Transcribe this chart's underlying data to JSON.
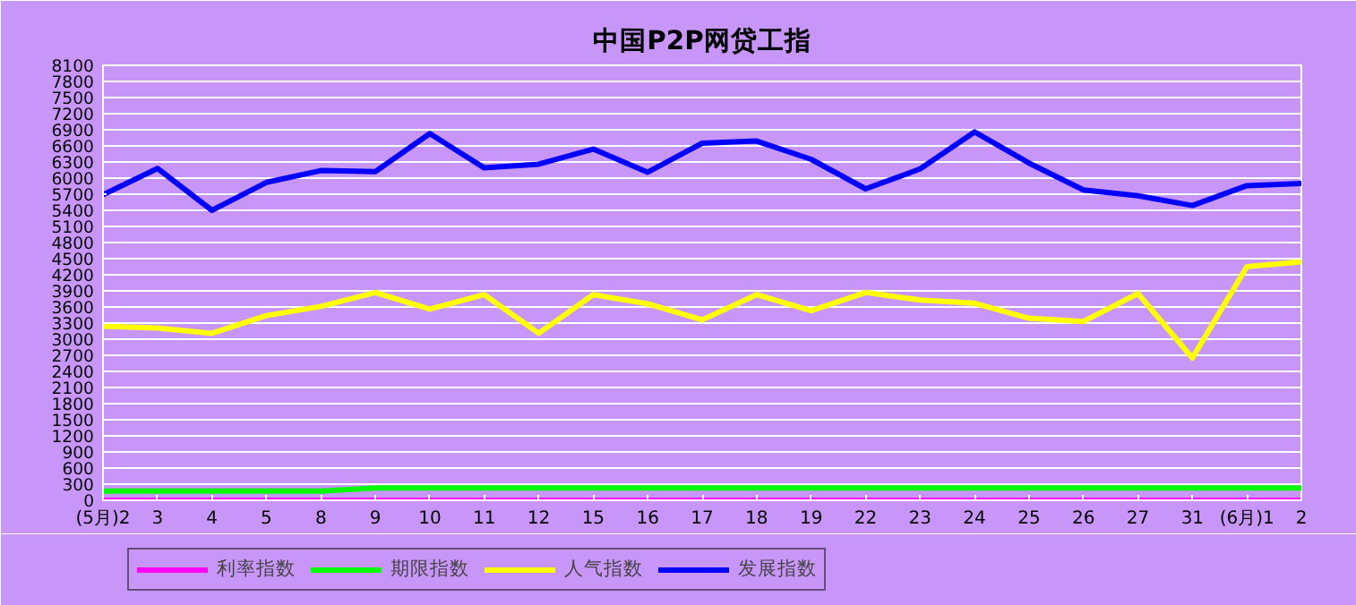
{
  "chart_data": {
    "type": "line",
    "title": "中国P2P网贷工指",
    "categories": [
      "(5月)2",
      "3",
      "4",
      "5",
      "8",
      "9",
      "10",
      "11",
      "12",
      "15",
      "16",
      "17",
      "18",
      "19",
      "22",
      "23",
      "24",
      "25",
      "26",
      "27",
      "31",
      "(6月)1",
      "2"
    ],
    "series": [
      {
        "name": "利率指数",
        "color": "#ff00ff",
        "values": [
          0,
          0,
          0,
          0,
          0,
          0,
          0,
          0,
          0,
          0,
          0,
          0,
          0,
          0,
          0,
          0,
          0,
          0,
          0,
          0,
          0,
          0,
          0
        ]
      },
      {
        "name": "期限指数",
        "color": "#00ff00",
        "values": [
          170,
          170,
          170,
          170,
          170,
          230,
          230,
          230,
          230,
          230,
          230,
          230,
          230,
          230,
          230,
          230,
          230,
          230,
          230,
          230,
          230,
          230,
          230
        ]
      },
      {
        "name": "人气指数",
        "color": "#ffff00",
        "values": [
          3240,
          3210,
          3110,
          3440,
          3610,
          3870,
          3560,
          3830,
          3110,
          3830,
          3660,
          3360,
          3830,
          3530,
          3870,
          3730,
          3670,
          3390,
          3330,
          3850,
          2650,
          4350,
          4440
        ]
      },
      {
        "name": "发展指数",
        "color": "#0000ff",
        "values": [
          5690,
          6180,
          5400,
          5920,
          6140,
          6120,
          6830,
          6190,
          6260,
          6540,
          6110,
          6650,
          6690,
          6350,
          5800,
          6170,
          6860,
          6280,
          5780,
          5670,
          5490,
          5860,
          5900
        ]
      }
    ],
    "ylim": [
      0,
      8100
    ],
    "yticks": [
      0,
      300,
      600,
      900,
      1200,
      1500,
      1800,
      2100,
      2400,
      2700,
      3000,
      3300,
      3600,
      3900,
      4200,
      4500,
      4800,
      5100,
      5400,
      5700,
      6000,
      6300,
      6600,
      6900,
      7200,
      7500,
      7800,
      8100
    ],
    "grid": "y",
    "legend": "bottom",
    "marker": "none",
    "line_style": "solid"
  }
}
